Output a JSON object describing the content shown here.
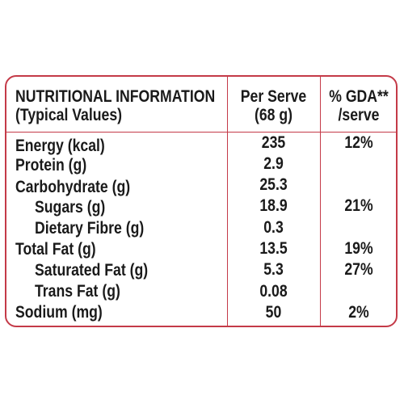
{
  "header": {
    "title_line1": "NUTRITIONAL INFORMATION",
    "title_line2": "(Typical Values)",
    "per_serve_line1": "Per Serve",
    "per_serve_line2": "(68 g)",
    "gda_line1": "% GDA**",
    "gda_line2": "/serve"
  },
  "rows": [
    {
      "label": "Energy (kcal)",
      "value": "235",
      "gda": "12%"
    },
    {
      "label": "Protein (g)",
      "value": "2.9",
      "gda": ""
    },
    {
      "label": "Carbohydrate (g)",
      "value": "25.3",
      "gda": ""
    },
    {
      "label": "Sugars (g)",
      "value": "18.9",
      "gda": "21%"
    },
    {
      "label": "Dietary Fibre (g)",
      "value": "0.3",
      "gda": ""
    },
    {
      "label": "Total Fat (g)",
      "value": "13.5",
      "gda": "19%"
    },
    {
      "label": "Saturated Fat (g)",
      "value": "5.3",
      "gda": "27%"
    },
    {
      "label": "Trans Fat (g)",
      "value": "0.08",
      "gda": ""
    },
    {
      "label": "Sodium (mg)",
      "value": "50",
      "gda": "2%"
    }
  ],
  "colors": {
    "border": "#c43a48",
    "text": "#1a1a1a"
  }
}
